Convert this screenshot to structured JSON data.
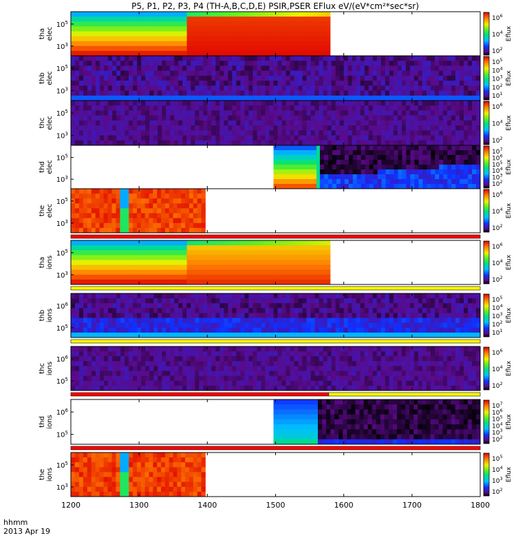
{
  "title": "P5, P1, P2, P3, P4 (TH-A,B,C,D,E) PSIR,PSER EFlux eV/(eV*cm²*sec*sr)",
  "time_axis": {
    "label_line1": "hhmm",
    "label_line2": "2013 Apr 19",
    "ticks": [
      "1200",
      "1300",
      "1400",
      "1500",
      "1600",
      "1700",
      "1800"
    ]
  },
  "colorbar_label": "Eflux",
  "chart_data": {
    "type": "heatmap",
    "x_range": [
      1200,
      1800
    ],
    "x_ticks": [
      1200,
      1300,
      1400,
      1500,
      1600,
      1700,
      1800
    ],
    "colormap": "rainbow",
    "panels": [
      {
        "probe_label": "tha",
        "species_label": "elec",
        "y_ticks": [
          {
            "base": "10",
            "exp": "5"
          },
          {
            "base": "10",
            "exp": "3"
          }
        ],
        "colorbar_ticks": [
          {
            "base": "10",
            "exp": "6"
          },
          {
            "base": "10",
            "exp": "4"
          },
          {
            "base": "10",
            "exp": "2"
          }
        ],
        "regions": [
          {
            "from": 1200,
            "to": 1370,
            "profile": "tha_elec_1"
          },
          {
            "from": 1370,
            "to": 1580,
            "profile": "tha_elec_2"
          }
        ]
      },
      {
        "probe_label": "thb",
        "species_label": "elec",
        "y_ticks": [
          {
            "base": "10",
            "exp": "5"
          },
          {
            "base": "10",
            "exp": "3"
          }
        ],
        "colorbar_ticks": [
          {
            "base": "10",
            "exp": "5"
          },
          {
            "base": "10",
            "exp": "4"
          },
          {
            "base": "10",
            "exp": "3"
          },
          {
            "base": "10",
            "exp": "2"
          },
          {
            "base": "10",
            "exp": "1"
          }
        ],
        "regions": [
          {
            "from": 1200,
            "to": 1800,
            "profile": "noise_low"
          }
        ]
      },
      {
        "probe_label": "thc",
        "species_label": "elec",
        "y_ticks": [
          {
            "base": "10",
            "exp": "5"
          },
          {
            "base": "10",
            "exp": "3"
          }
        ],
        "colorbar_ticks": [
          {
            "base": "10",
            "exp": "6"
          },
          {
            "base": "10",
            "exp": "4"
          },
          {
            "base": "10",
            "exp": "2"
          }
        ],
        "regions": [
          {
            "from": 1200,
            "to": 1800,
            "profile": "noise_purple"
          }
        ]
      },
      {
        "probe_label": "thd",
        "species_label": "elec",
        "y_ticks": [
          {
            "base": "10",
            "exp": "5"
          },
          {
            "base": "10",
            "exp": "3"
          }
        ],
        "colorbar_ticks": [
          {
            "base": "10",
            "exp": "7"
          },
          {
            "base": "10",
            "exp": "6"
          },
          {
            "base": "10",
            "exp": "5"
          },
          {
            "base": "10",
            "exp": "4"
          },
          {
            "base": "10",
            "exp": "3"
          },
          {
            "base": "10",
            "exp": "2"
          }
        ],
        "regions": [
          {
            "from": 1497,
            "to": 1560,
            "profile": "thd_elec_1"
          },
          {
            "from": 1560,
            "to": 1565,
            "profile": "thd_elec_edge"
          },
          {
            "from": 1565,
            "to": 1800,
            "profile": "thd_elec_2"
          }
        ]
      },
      {
        "probe_label": "the",
        "species_label": "elec",
        "y_ticks": [
          {
            "base": "10",
            "exp": "5"
          },
          {
            "base": "10",
            "exp": "3"
          }
        ],
        "colorbar_ticks": [
          {
            "base": "10",
            "exp": "6"
          },
          {
            "base": "10",
            "exp": "4"
          },
          {
            "base": "10",
            "exp": "2"
          }
        ],
        "regions": [
          {
            "from": 1200,
            "to": 1272,
            "profile": "the_hot"
          },
          {
            "from": 1272,
            "to": 1285,
            "profile": "the_stripe"
          },
          {
            "from": 1285,
            "to": 1397,
            "profile": "the_hot"
          }
        ],
        "mode_bar": [
          {
            "from": 1200,
            "to": 1800,
            "mode": "red"
          }
        ]
      },
      {
        "probe_label": "tha",
        "species_label": "ions",
        "y_ticks": [
          {
            "base": "10",
            "exp": "5"
          },
          {
            "base": "10",
            "exp": "3"
          }
        ],
        "colorbar_ticks": [
          {
            "base": "10",
            "exp": "6"
          },
          {
            "base": "10",
            "exp": "4"
          },
          {
            "base": "10",
            "exp": "2"
          }
        ],
        "regions": [
          {
            "from": 1200,
            "to": 1370,
            "profile": "tha_ions_1"
          },
          {
            "from": 1370,
            "to": 1580,
            "profile": "tha_ions_2"
          }
        ],
        "mode_bar": [
          {
            "from": 1200,
            "to": 1800,
            "mode": "yellow"
          }
        ]
      },
      {
        "probe_label": "thb",
        "species_label": "ions",
        "y_ticks": [
          {
            "base": "10",
            "exp": "6"
          },
          {
            "base": "10",
            "exp": "5"
          }
        ],
        "colorbar_ticks": [
          {
            "base": "10",
            "exp": "5"
          },
          {
            "base": "10",
            "exp": "4"
          },
          {
            "base": "10",
            "exp": "3"
          },
          {
            "base": "10",
            "exp": "2"
          },
          {
            "base": "10",
            "exp": "1"
          }
        ],
        "regions": [
          {
            "from": 1200,
            "to": 1800,
            "profile": "thb_ions"
          }
        ],
        "mode_bar": [
          {
            "from": 1200,
            "to": 1800,
            "mode": "yellow"
          }
        ]
      },
      {
        "probe_label": "thc",
        "species_label": "ions",
        "y_ticks": [
          {
            "base": "10",
            "exp": "6"
          },
          {
            "base": "10",
            "exp": "5"
          }
        ],
        "colorbar_ticks": [
          {
            "base": "10",
            "exp": "6"
          },
          {
            "base": "10",
            "exp": "4"
          },
          {
            "base": "10",
            "exp": "2"
          }
        ],
        "regions": [
          {
            "from": 1200,
            "to": 1800,
            "profile": "noise_purple"
          }
        ],
        "mode_bar": [
          {
            "from": 1200,
            "to": 1578,
            "mode": "red"
          },
          {
            "from": 1578,
            "to": 1800,
            "mode": "yellow"
          }
        ]
      },
      {
        "probe_label": "thd",
        "species_label": "ions",
        "y_ticks": [
          {
            "base": "10",
            "exp": "6"
          },
          {
            "base": "10",
            "exp": "5"
          }
        ],
        "colorbar_ticks": [
          {
            "base": "10",
            "exp": "7"
          },
          {
            "base": "10",
            "exp": "6"
          },
          {
            "base": "10",
            "exp": "5"
          },
          {
            "base": "10",
            "exp": "4"
          },
          {
            "base": "10",
            "exp": "3"
          },
          {
            "base": "10",
            "exp": "2"
          }
        ],
        "regions": [
          {
            "from": 1497,
            "to": 1562,
            "profile": "thd_ions_1"
          },
          {
            "from": 1562,
            "to": 1800,
            "profile": "thd_ions_2"
          }
        ],
        "mode_bar": [
          {
            "from": 1200,
            "to": 1800,
            "mode": "red"
          }
        ]
      },
      {
        "probe_label": "the",
        "species_label": "ions",
        "y_ticks": [
          {
            "base": "10",
            "exp": "5"
          },
          {
            "base": "10",
            "exp": "3"
          }
        ],
        "colorbar_ticks": [
          {
            "base": "10",
            "exp": "5"
          },
          {
            "base": "10",
            "exp": "4"
          },
          {
            "base": "10",
            "exp": "3"
          },
          {
            "base": "10",
            "exp": "2"
          }
        ],
        "regions": [
          {
            "from": 1200,
            "to": 1272,
            "profile": "the_hot"
          },
          {
            "from": 1272,
            "to": 1285,
            "profile": "the_stripe"
          },
          {
            "from": 1285,
            "to": 1397,
            "profile": "the_hot"
          }
        ]
      }
    ]
  }
}
